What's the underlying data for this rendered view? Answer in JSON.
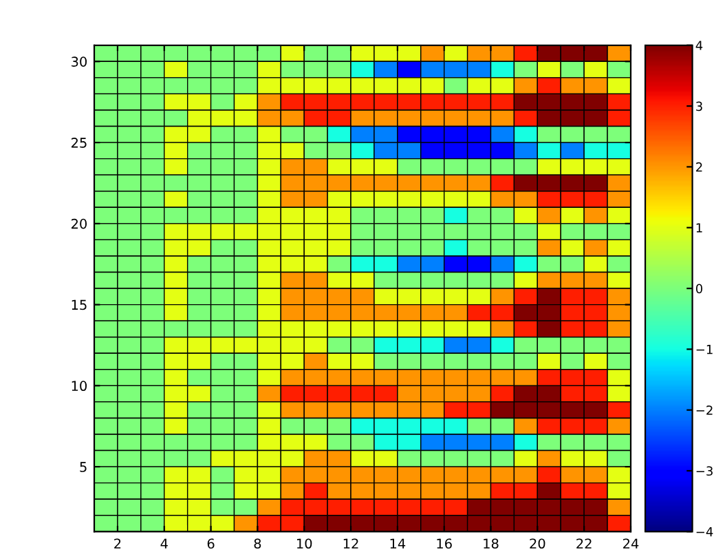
{
  "chart_data": {
    "type": "heatmap",
    "xlim": [
      1,
      24
    ],
    "ylim": [
      1,
      31
    ],
    "xticks": [
      2,
      4,
      6,
      8,
      10,
      12,
      14,
      16,
      18,
      20,
      22,
      24
    ],
    "yticks": [
      5,
      10,
      15,
      20,
      25,
      30
    ],
    "clim": [
      -4,
      4
    ],
    "cticks": [
      {
        "value": -4,
        "label": "−4"
      },
      {
        "value": -3,
        "label": "−3"
      },
      {
        "value": -2,
        "label": "−2"
      },
      {
        "value": -1,
        "label": "−1"
      },
      0,
      1,
      2,
      3,
      4
    ],
    "cells": [
      [
        0,
        0,
        0,
        0,
        0,
        0,
        0,
        0,
        1,
        0,
        0,
        1,
        1,
        1,
        2,
        1,
        2,
        2,
        3,
        4,
        4,
        4,
        2
      ],
      [
        0,
        0,
        0,
        1,
        0,
        0,
        0,
        1,
        0,
        0,
        0,
        -1,
        -2,
        -3,
        -2,
        -2,
        -2,
        -1,
        0,
        1,
        0,
        1,
        0
      ],
      [
        0,
        0,
        0,
        0,
        0,
        0,
        0,
        1,
        1,
        1,
        1,
        1,
        1,
        1,
        1,
        0,
        1,
        1,
        2,
        3,
        2,
        2,
        1
      ],
      [
        0,
        0,
        0,
        1,
        1,
        0,
        1,
        2,
        3,
        3,
        3,
        3,
        3,
        3,
        3,
        3,
        3,
        3,
        4,
        4,
        4,
        4,
        3
      ],
      [
        0,
        0,
        0,
        0,
        1,
        1,
        1,
        2,
        2,
        3,
        3,
        2,
        2,
        2,
        2,
        2,
        2,
        2,
        3,
        4,
        4,
        4,
        3
      ],
      [
        0,
        0,
        0,
        1,
        1,
        0,
        0,
        1,
        0,
        0,
        -1,
        -2,
        -2,
        -3,
        -3,
        -3,
        -3,
        -2,
        -1,
        0,
        0,
        0,
        0
      ],
      [
        0,
        0,
        0,
        1,
        0,
        0,
        0,
        1,
        1,
        0,
        0,
        -1,
        -2,
        -2,
        -3,
        -3,
        -3,
        -3,
        -2,
        -1,
        -2,
        -1,
        -1
      ],
      [
        0,
        0,
        0,
        1,
        0,
        0,
        0,
        1,
        2,
        2,
        1,
        1,
        1,
        0,
        0,
        0,
        0,
        0,
        0,
        1,
        1,
        1,
        1
      ],
      [
        0,
        0,
        0,
        0,
        0,
        0,
        0,
        1,
        2,
        2,
        2,
        2,
        2,
        2,
        2,
        2,
        2,
        3,
        4,
        4,
        4,
        4,
        2
      ],
      [
        0,
        0,
        0,
        1,
        0,
        0,
        0,
        1,
        2,
        2,
        1,
        1,
        1,
        1,
        1,
        1,
        1,
        2,
        2,
        3,
        3,
        3,
        2
      ],
      [
        0,
        0,
        0,
        0,
        0,
        0,
        0,
        1,
        1,
        1,
        1,
        0,
        0,
        0,
        0,
        -1,
        0,
        0,
        1,
        2,
        1,
        2,
        1
      ],
      [
        0,
        0,
        0,
        1,
        1,
        1,
        1,
        1,
        1,
        1,
        1,
        0,
        0,
        0,
        0,
        0,
        0,
        0,
        0,
        1,
        0,
        0,
        0
      ],
      [
        0,
        0,
        0,
        1,
        1,
        0,
        0,
        1,
        1,
        1,
        1,
        0,
        0,
        0,
        0,
        -1,
        0,
        0,
        0,
        2,
        1,
        2,
        1
      ],
      [
        0,
        0,
        0,
        1,
        0,
        0,
        0,
        1,
        1,
        1,
        0,
        -1,
        -1,
        -2,
        -2,
        -3,
        -3,
        -2,
        -1,
        0,
        0,
        1,
        0
      ],
      [
        0,
        0,
        0,
        1,
        0,
        0,
        0,
        1,
        2,
        2,
        1,
        1,
        0,
        0,
        0,
        0,
        0,
        0,
        1,
        2,
        2,
        2,
        1
      ],
      [
        0,
        0,
        0,
        1,
        0,
        0,
        0,
        1,
        2,
        2,
        2,
        2,
        1,
        1,
        1,
        1,
        1,
        2,
        3,
        4,
        3,
        3,
        2
      ],
      [
        0,
        0,
        0,
        1,
        0,
        0,
        0,
        1,
        2,
        2,
        2,
        2,
        2,
        2,
        2,
        2,
        3,
        3,
        4,
        4,
        3,
        3,
        2
      ],
      [
        0,
        0,
        0,
        0,
        0,
        0,
        0,
        1,
        1,
        1,
        1,
        1,
        1,
        1,
        1,
        1,
        1,
        2,
        3,
        4,
        3,
        3,
        2
      ],
      [
        0,
        0,
        0,
        1,
        1,
        1,
        1,
        1,
        1,
        1,
        0,
        0,
        -1,
        -1,
        -1,
        -2,
        -2,
        -1,
        0,
        0,
        0,
        0,
        0
      ],
      [
        0,
        0,
        0,
        1,
        1,
        0,
        0,
        1,
        1,
        2,
        1,
        1,
        0,
        0,
        0,
        0,
        0,
        0,
        0,
        1,
        0,
        1,
        0
      ],
      [
        0,
        0,
        0,
        1,
        0,
        0,
        0,
        1,
        2,
        2,
        2,
        2,
        2,
        2,
        2,
        2,
        2,
        2,
        2,
        3,
        3,
        3,
        1
      ],
      [
        0,
        0,
        0,
        1,
        1,
        0,
        0,
        2,
        3,
        3,
        3,
        3,
        3,
        2,
        2,
        2,
        2,
        3,
        4,
        4,
        3,
        3,
        1
      ],
      [
        0,
        0,
        0,
        1,
        0,
        0,
        0,
        1,
        2,
        2,
        2,
        2,
        2,
        2,
        2,
        3,
        3,
        4,
        4,
        4,
        4,
        4,
        3
      ],
      [
        0,
        0,
        0,
        1,
        0,
        0,
        0,
        1,
        0,
        0,
        0,
        -1,
        -1,
        -1,
        -1,
        -1,
        0,
        0,
        2,
        3,
        3,
        3,
        2
      ],
      [
        0,
        0,
        0,
        0,
        0,
        0,
        0,
        1,
        1,
        1,
        0,
        0,
        -1,
        -1,
        -2,
        -2,
        -2,
        -2,
        -1,
        0,
        0,
        0,
        0
      ],
      [
        0,
        0,
        0,
        0,
        0,
        1,
        1,
        1,
        1,
        2,
        2,
        1,
        1,
        0,
        0,
        0,
        0,
        0,
        1,
        2,
        1,
        1,
        0
      ],
      [
        0,
        0,
        0,
        1,
        1,
        0,
        1,
        1,
        2,
        2,
        2,
        2,
        2,
        2,
        2,
        2,
        2,
        2,
        2,
        3,
        2,
        2,
        1
      ],
      [
        0,
        0,
        0,
        1,
        1,
        0,
        1,
        1,
        2,
        3,
        2,
        2,
        2,
        2,
        2,
        2,
        2,
        3,
        3,
        4,
        3,
        3,
        1
      ],
      [
        0,
        0,
        0,
        1,
        1,
        0,
        0,
        2,
        3,
        3,
        3,
        3,
        3,
        3,
        3,
        3,
        4,
        4,
        4,
        4,
        4,
        4,
        2
      ],
      [
        0,
        0,
        0,
        1,
        1,
        1,
        2,
        3,
        3,
        4,
        4,
        4,
        4,
        4,
        4,
        4,
        4,
        4,
        4,
        4,
        4,
        4,
        3
      ]
    ]
  }
}
